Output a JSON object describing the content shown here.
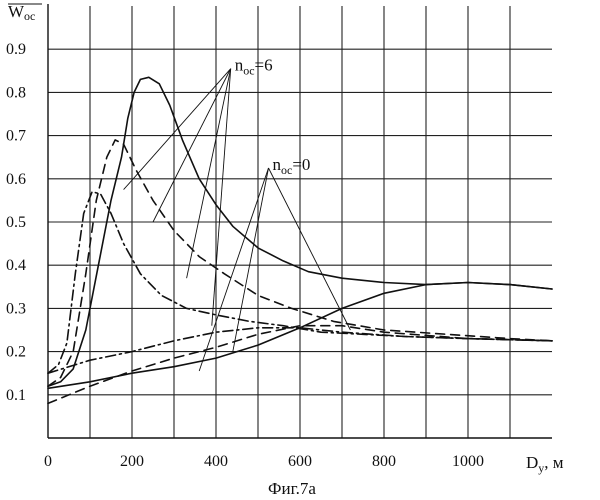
{
  "chart_data": {
    "type": "line",
    "ylabel": "W",
    "ylabel_sub": "oc",
    "xlabel": "D",
    "xlabel_sub": "у",
    "xlabel_unit": ", м",
    "caption": "Фиг.7а",
    "xlim": [
      0,
      1200
    ],
    "ylim": [
      0,
      1.0
    ],
    "x_ticks": [
      0,
      200,
      400,
      600,
      800,
      1000
    ],
    "y_ticks": [
      0.1,
      0.2,
      0.3,
      0.4,
      0.5,
      0.6,
      0.7,
      0.8,
      0.9
    ],
    "grid": true,
    "series": [
      {
        "style": "solid-peak",
        "points": [
          [
            0,
            0.12
          ],
          [
            30,
            0.13
          ],
          [
            60,
            0.16
          ],
          [
            90,
            0.25
          ],
          [
            120,
            0.4
          ],
          [
            150,
            0.55
          ],
          [
            175,
            0.65
          ],
          [
            190,
            0.74
          ],
          [
            205,
            0.8
          ],
          [
            220,
            0.83
          ],
          [
            240,
            0.835
          ],
          [
            265,
            0.82
          ],
          [
            290,
            0.77
          ],
          [
            320,
            0.69
          ],
          [
            360,
            0.6
          ],
          [
            400,
            0.54
          ],
          [
            440,
            0.49
          ],
          [
            500,
            0.44
          ],
          [
            560,
            0.41
          ],
          [
            620,
            0.385
          ],
          [
            700,
            0.37
          ],
          [
            800,
            0.36
          ],
          [
            900,
            0.355
          ],
          [
            1000,
            0.36
          ],
          [
            1100,
            0.355
          ],
          [
            1200,
            0.345
          ]
        ]
      },
      {
        "style": "dashed-peak",
        "points": [
          [
            0,
            0.12
          ],
          [
            30,
            0.14
          ],
          [
            60,
            0.2
          ],
          [
            90,
            0.38
          ],
          [
            115,
            0.55
          ],
          [
            140,
            0.65
          ],
          [
            160,
            0.69
          ],
          [
            180,
            0.68
          ],
          [
            210,
            0.62
          ],
          [
            250,
            0.55
          ],
          [
            300,
            0.48
          ],
          [
            360,
            0.42
          ],
          [
            420,
            0.38
          ],
          [
            500,
            0.33
          ],
          [
            580,
            0.3
          ],
          [
            680,
            0.27
          ],
          [
            800,
            0.25
          ],
          [
            950,
            0.24
          ],
          [
            1100,
            0.23
          ],
          [
            1200,
            0.225
          ]
        ]
      },
      {
        "style": "dashdot-peak",
        "points": [
          [
            0,
            0.15
          ],
          [
            25,
            0.17
          ],
          [
            45,
            0.22
          ],
          [
            65,
            0.38
          ],
          [
            85,
            0.52
          ],
          [
            105,
            0.57
          ],
          [
            125,
            0.565
          ],
          [
            150,
            0.52
          ],
          [
            180,
            0.45
          ],
          [
            220,
            0.38
          ],
          [
            270,
            0.33
          ],
          [
            330,
            0.3
          ],
          [
            400,
            0.285
          ],
          [
            480,
            0.27
          ],
          [
            560,
            0.26
          ],
          [
            650,
            0.245
          ],
          [
            750,
            0.24
          ],
          [
            850,
            0.235
          ],
          [
            1000,
            0.23
          ],
          [
            1200,
            0.225
          ]
        ]
      },
      {
        "style": "solid-rise",
        "points": [
          [
            0,
            0.115
          ],
          [
            100,
            0.13
          ],
          [
            200,
            0.15
          ],
          [
            300,
            0.165
          ],
          [
            400,
            0.185
          ],
          [
            500,
            0.215
          ],
          [
            600,
            0.255
          ],
          [
            700,
            0.3
          ],
          [
            800,
            0.335
          ],
          [
            900,
            0.355
          ],
          [
            1000,
            0.36
          ],
          [
            1100,
            0.355
          ],
          [
            1200,
            0.345
          ]
        ]
      },
      {
        "style": "dashed-rise",
        "points": [
          [
            0,
            0.08
          ],
          [
            100,
            0.12
          ],
          [
            200,
            0.155
          ],
          [
            300,
            0.185
          ],
          [
            400,
            0.21
          ],
          [
            500,
            0.24
          ],
          [
            600,
            0.26
          ],
          [
            700,
            0.26
          ],
          [
            800,
            0.245
          ],
          [
            1000,
            0.23
          ],
          [
            1200,
            0.225
          ]
        ]
      },
      {
        "style": "dashdot-rise",
        "points": [
          [
            0,
            0.15
          ],
          [
            100,
            0.18
          ],
          [
            200,
            0.2
          ],
          [
            300,
            0.225
          ],
          [
            400,
            0.245
          ],
          [
            500,
            0.255
          ],
          [
            600,
            0.255
          ],
          [
            700,
            0.245
          ],
          [
            850,
            0.235
          ],
          [
            1000,
            0.23
          ],
          [
            1200,
            0.225
          ]
        ]
      }
    ],
    "annotations": [
      {
        "text": "n",
        "sub": "oc",
        "suffix": "=6",
        "anchor": [
          435,
          0.855
        ],
        "leaders": [
          [
            180,
            0.575
          ],
          [
            250,
            0.5
          ],
          [
            330,
            0.37
          ],
          [
            390,
            0.26
          ]
        ]
      },
      {
        "text": "n",
        "sub": "oc",
        "suffix": "=0",
        "anchor": [
          525,
          0.625
        ],
        "leaders": [
          [
            360,
            0.155
          ],
          [
            440,
            0.2
          ],
          [
            720,
            0.25
          ]
        ]
      }
    ]
  }
}
